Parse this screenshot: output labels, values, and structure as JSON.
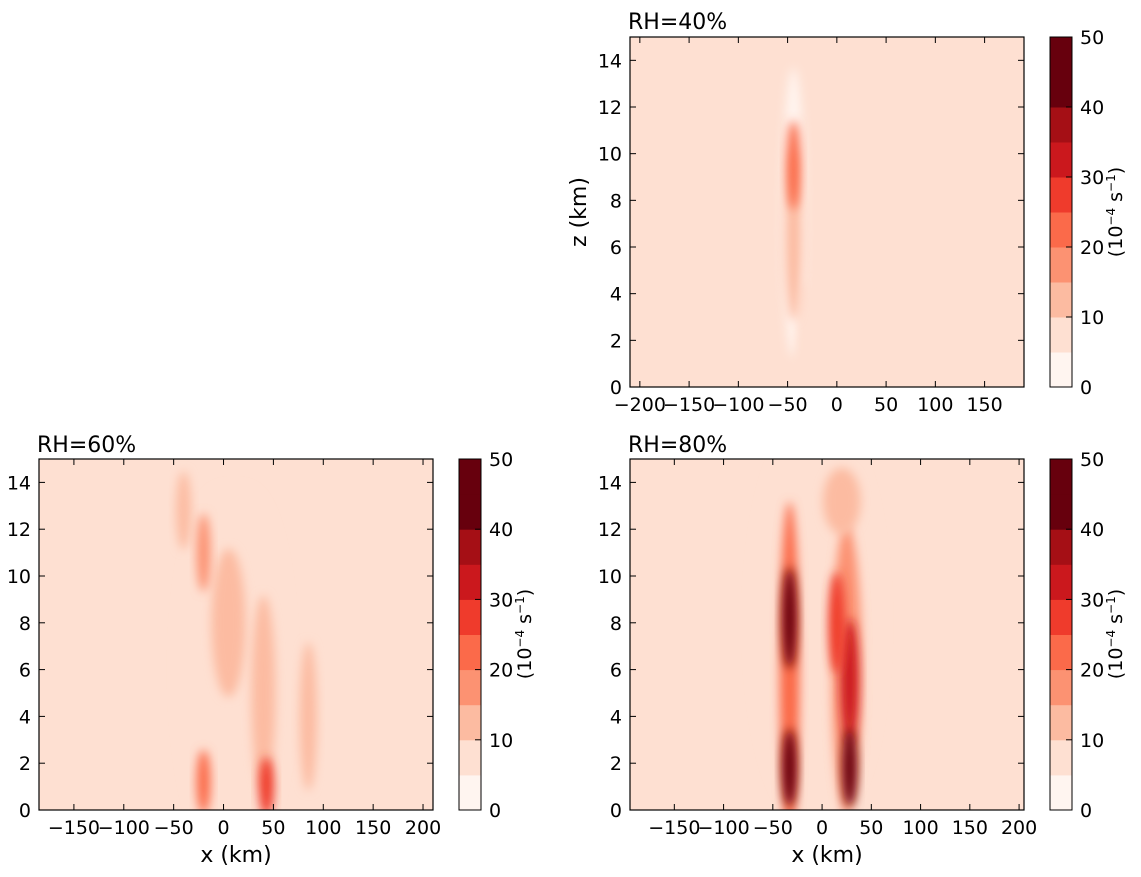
{
  "colors": {
    "levels": [
      "#fff5f0",
      "#fee0d2",
      "#fcbba1",
      "#fc9272",
      "#fb6a4a",
      "#ef3b2c",
      "#cb181d",
      "#a50f15",
      "#67000d"
    ]
  },
  "colorbar": {
    "min": 0,
    "max": 50,
    "level_step": 5,
    "tick_values": [
      0,
      10,
      20,
      30,
      40,
      50
    ],
    "label_main": "(10",
    "label_exp": "−4",
    "label_unit": " s",
    "label_exp2": "−1",
    "label_close": ")"
  },
  "chart_data": [
    {
      "type": "contour",
      "title": "RH=40%",
      "xlabel": "",
      "ylabel": "z (km)",
      "xlim": [
        -210,
        190
      ],
      "ylim": [
        0,
        15
      ],
      "xticks": [
        -200,
        -150,
        -100,
        -50,
        0,
        50,
        100,
        150
      ],
      "xtick_labels": [
        "−200",
        "−150",
        "−100",
        "−50",
        "0",
        "50",
        "100",
        "150"
      ],
      "yticks": [
        0,
        2,
        4,
        6,
        8,
        10,
        12,
        14
      ],
      "ytick_labels": [
        "0",
        "2",
        "4",
        "6",
        "8",
        "10",
        "12",
        "14"
      ],
      "features": [
        {
          "x": -44,
          "z": 9.5,
          "width_km": 6,
          "height_km": 3.5,
          "value": 22
        },
        {
          "x": -44,
          "z": 6.5,
          "width_km": 9,
          "height_km": 7,
          "value": 14
        },
        {
          "x": -30,
          "z": 1.8,
          "width_km": 14,
          "height_km": 5,
          "value": 9
        },
        {
          "x": 47,
          "z": 2.2,
          "width_km": 5,
          "height_km": 3,
          "value": 8
        },
        {
          "x": -44,
          "z": 7.5,
          "width_km": 14,
          "height_km": 12,
          "value": 4
        }
      ]
    },
    {
      "type": "contour",
      "title": "RH=60%",
      "xlabel": "x (km)",
      "ylabel": "",
      "xlim": [
        -185,
        210
      ],
      "ylim": [
        0,
        15
      ],
      "xticks": [
        -150,
        -100,
        -50,
        0,
        50,
        100,
        150,
        200
      ],
      "xtick_labels": [
        "−150",
        "−100",
        "−50",
        "0",
        "50",
        "100",
        "150",
        "200"
      ],
      "yticks": [
        0,
        2,
        4,
        6,
        8,
        10,
        12,
        14
      ],
      "ytick_labels": [
        "0",
        "2",
        "4",
        "6",
        "8",
        "10",
        "12",
        "14"
      ],
      "features": [
        {
          "x": -20,
          "z": 11,
          "width_km": 6,
          "height_km": 3,
          "value": 17
        },
        {
          "x": -20,
          "z": 1.2,
          "width_km": 6,
          "height_km": 2.4,
          "value": 24
        },
        {
          "x": 43,
          "z": 1.0,
          "width_km": 7,
          "height_km": 2.2,
          "value": 28
        },
        {
          "x": 5,
          "z": 8,
          "width_km": 26,
          "height_km": 6,
          "value": 14
        },
        {
          "x": 40,
          "z": 5,
          "width_km": 16,
          "height_km": 8,
          "value": 14
        },
        {
          "x": -40,
          "z": 12.8,
          "width_km": 7,
          "height_km": 3,
          "value": 11
        },
        {
          "x": 85,
          "z": 4,
          "width_km": 9,
          "height_km": 6,
          "value": 10
        },
        {
          "x": 10,
          "z": 6,
          "width_km": 70,
          "height_km": 14,
          "value": 7
        }
      ]
    },
    {
      "type": "contour",
      "title": "RH=80%",
      "xlabel": "x (km)",
      "ylabel": "",
      "xlim": [
        -195,
        205
      ],
      "ylim": [
        0,
        15
      ],
      "xticks": [
        -150,
        -100,
        -50,
        0,
        50,
        100,
        150,
        200
      ],
      "xtick_labels": [
        "−150",
        "−100",
        "−50",
        "0",
        "50",
        "100",
        "150",
        "200"
      ],
      "yticks": [
        0,
        2,
        4,
        6,
        8,
        10,
        12,
        14
      ],
      "ytick_labels": [
        "0",
        "2",
        "4",
        "6",
        "8",
        "10",
        "12",
        "14"
      ],
      "features": [
        {
          "x": -33,
          "z": 8.2,
          "width_km": 7,
          "height_km": 4,
          "value": 40
        },
        {
          "x": -33,
          "z": 1.8,
          "width_km": 7,
          "height_km": 3,
          "value": 42
        },
        {
          "x": 28,
          "z": 1.8,
          "width_km": 7,
          "height_km": 3,
          "value": 40
        },
        {
          "x": 28,
          "z": 5.5,
          "width_km": 9,
          "height_km": 5,
          "value": 32
        },
        {
          "x": 15,
          "z": 8,
          "width_km": 8,
          "height_km": 4,
          "value": 27
        },
        {
          "x": -33,
          "z": 6,
          "width_km": 12,
          "height_km": 14,
          "value": 22
        },
        {
          "x": 25,
          "z": 6,
          "width_km": 22,
          "height_km": 12,
          "value": 18
        },
        {
          "x": 20,
          "z": 13.2,
          "width_km": 30,
          "height_km": 2.5,
          "value": 14
        },
        {
          "x": -5,
          "z": 8,
          "width_km": 90,
          "height_km": 15,
          "value": 8
        }
      ]
    }
  ]
}
